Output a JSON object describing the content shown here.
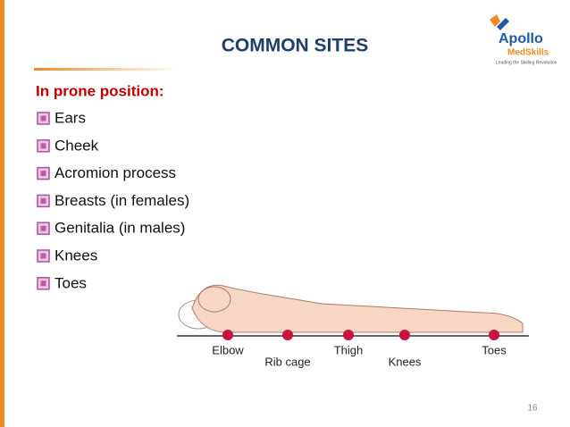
{
  "header": {
    "title": "COMMON SITES",
    "logo": {
      "brand": "Apollo",
      "product": "MedSkills",
      "tagline": "Leading the Skilling Revolution"
    }
  },
  "subtitle": "In prone position:",
  "bullets": [
    "Ears",
    "Cheek",
    "Acromion process",
    "Breasts (in females)",
    "Genitalia (in males)",
    "Knees",
    "Toes"
  ],
  "figure": {
    "labels": [
      "Elbow",
      "Rib cage",
      "Thigh",
      "Knees",
      "Toes"
    ]
  },
  "footer": {
    "page_number": "16"
  }
}
